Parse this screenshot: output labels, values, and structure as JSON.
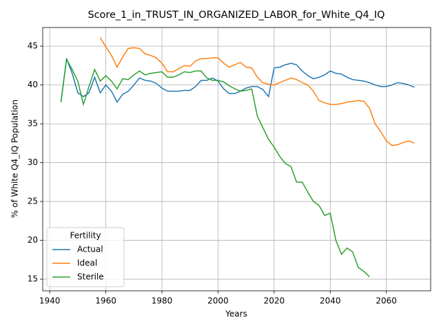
{
  "chart_data": {
    "type": "line",
    "title": "Score_1_in_TRUST_IN_ORGANIZED_LABOR_for_White_Q4_IQ",
    "x_label": "Years",
    "y_label": "% of White Q4_IQ Population",
    "legend_title": "Fertility",
    "legend_position": "lower left",
    "grid": true,
    "xlim": [
      1937.5,
      2075.8
    ],
    "ylim": [
      13.5,
      47.4
    ],
    "xticks": [
      1940,
      1960,
      1980,
      2000,
      2020,
      2040,
      2060
    ],
    "yticks": [
      15,
      20,
      25,
      30,
      35,
      40,
      45
    ],
    "x": [
      1944,
      1946,
      1948,
      1950,
      1952,
      1954,
      1956,
      1958,
      1960,
      1962,
      1964,
      1966,
      1968,
      1970,
      1972,
      1974,
      1976,
      1978,
      1980,
      1982,
      1984,
      1986,
      1988,
      1990,
      1992,
      1994,
      1996,
      1998,
      2000,
      2002,
      2004,
      2006,
      2008,
      2010,
      2012,
      2014,
      2016,
      2018,
      2020,
      2022,
      2024,
      2026,
      2028,
      2030,
      2032,
      2034,
      2036,
      2038,
      2040,
      2042,
      2044,
      2046,
      2048,
      2050,
      2052,
      2054,
      2056,
      2058,
      2060,
      2062,
      2064,
      2066,
      2068,
      2070
    ],
    "series": [
      {
        "name": "Actual",
        "color": "#1f77b4",
        "values": [
          37.8,
          43.4,
          41.5,
          39.0,
          38.5,
          39.0,
          41.0,
          39.0,
          40.0,
          39.2,
          37.8,
          38.8,
          39.2,
          40.0,
          40.9,
          40.6,
          40.5,
          40.2,
          39.6,
          39.2,
          39.2,
          39.2,
          39.3,
          39.3,
          39.8,
          40.6,
          40.6,
          40.9,
          40.5,
          39.5,
          38.9,
          38.9,
          39.2,
          39.6,
          39.8,
          39.8,
          39.4,
          38.5,
          42.2,
          42.3,
          42.6,
          42.8,
          42.6,
          41.8,
          41.2,
          40.8,
          41.0,
          41.3,
          41.8,
          41.5,
          41.4,
          41.0,
          40.7,
          40.6,
          40.5,
          40.3,
          40.0,
          39.8,
          39.8,
          40.0,
          40.3,
          40.2,
          40.0,
          39.7
        ]
      },
      {
        "name": "Ideal",
        "color": "#ff7f0e",
        "values": [
          null,
          null,
          null,
          null,
          null,
          null,
          null,
          46.1,
          44.9,
          43.8,
          42.3,
          43.6,
          44.7,
          44.8,
          44.7,
          44.0,
          43.8,
          43.5,
          42.8,
          41.7,
          41.7,
          42.1,
          42.5,
          42.4,
          43.1,
          43.4,
          43.4,
          43.5,
          43.5,
          42.8,
          42.3,
          42.6,
          42.9,
          42.3,
          42.2,
          41.0,
          40.3,
          40.1,
          40.0,
          40.3,
          40.6,
          40.9,
          40.7,
          40.3,
          40.0,
          39.2,
          38.0,
          37.7,
          37.5,
          37.5,
          37.6,
          37.8,
          37.9,
          38.0,
          37.9,
          37.0,
          35.0,
          34.0,
          32.8,
          32.2,
          32.3,
          32.6,
          32.8,
          32.5
        ]
      },
      {
        "name": "Sterile",
        "color": "#2ca02c",
        "values": [
          37.8,
          43.3,
          42.0,
          40.5,
          37.5,
          39.8,
          42.0,
          40.5,
          41.2,
          40.5,
          39.5,
          40.8,
          40.7,
          41.3,
          41.8,
          41.3,
          41.5,
          41.6,
          41.7,
          41.0,
          41.0,
          41.3,
          41.7,
          41.6,
          41.8,
          41.8,
          40.9,
          40.6,
          40.6,
          40.4,
          39.9,
          39.5,
          39.2,
          39.3,
          39.5,
          36.0,
          34.5,
          33.0,
          32.0,
          30.8,
          29.9,
          29.5,
          27.5,
          27.5,
          26.2,
          25.0,
          24.5,
          23.2,
          23.5,
          20.0,
          18.2,
          19.0,
          18.5,
          16.5,
          16.0,
          15.3,
          null,
          null,
          null,
          null,
          null,
          null,
          null,
          null
        ]
      }
    ]
  }
}
